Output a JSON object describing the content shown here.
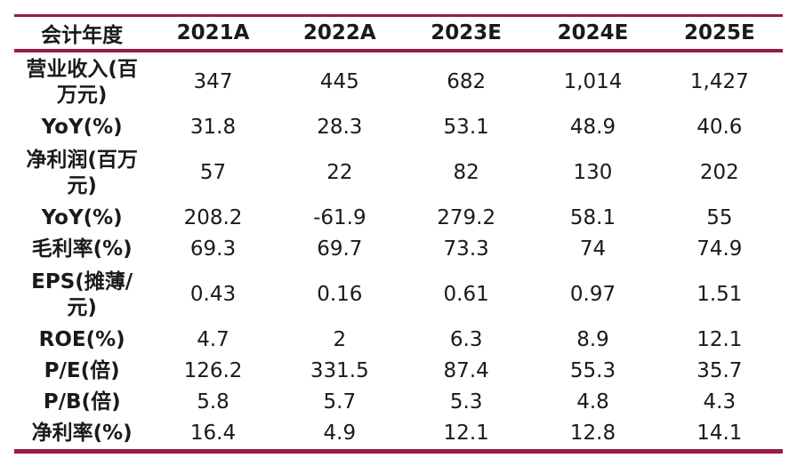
{
  "accent_color": "#991c40",
  "table": {
    "columns": [
      "会计年度",
      "2021A",
      "2022A",
      "2023E",
      "2024E",
      "2025E"
    ],
    "rows": [
      {
        "label": "营业收入(百万元)",
        "values": [
          "347",
          "445",
          "682",
          "1,014",
          "1,427"
        ]
      },
      {
        "label": "YoY(%)",
        "values": [
          "31.8",
          "28.3",
          "53.1",
          "48.9",
          "40.6"
        ]
      },
      {
        "label": "净利润(百万元)",
        "values": [
          "57",
          "22",
          "82",
          "130",
          "202"
        ]
      },
      {
        "label": "YoY(%)",
        "values": [
          "208.2",
          "-61.9",
          "279.2",
          "58.1",
          "55"
        ]
      },
      {
        "label": "毛利率(%)",
        "values": [
          "69.3",
          "69.7",
          "73.3",
          "74",
          "74.9"
        ]
      },
      {
        "label": "EPS(摊薄/元)",
        "values": [
          "0.43",
          "0.16",
          "0.61",
          "0.97",
          "1.51"
        ]
      },
      {
        "label": "ROE(%)",
        "values": [
          "4.7",
          "2",
          "6.3",
          "8.9",
          "12.1"
        ]
      },
      {
        "label": "P/E(倍)",
        "values": [
          "126.2",
          "331.5",
          "87.4",
          "55.3",
          "35.7"
        ]
      },
      {
        "label": "P/B(倍)",
        "values": [
          "5.8",
          "5.7",
          "5.3",
          "4.8",
          "4.3"
        ]
      },
      {
        "label": "净利率(%)",
        "values": [
          "16.4",
          "4.9",
          "12.1",
          "12.8",
          "14.1"
        ]
      }
    ]
  }
}
